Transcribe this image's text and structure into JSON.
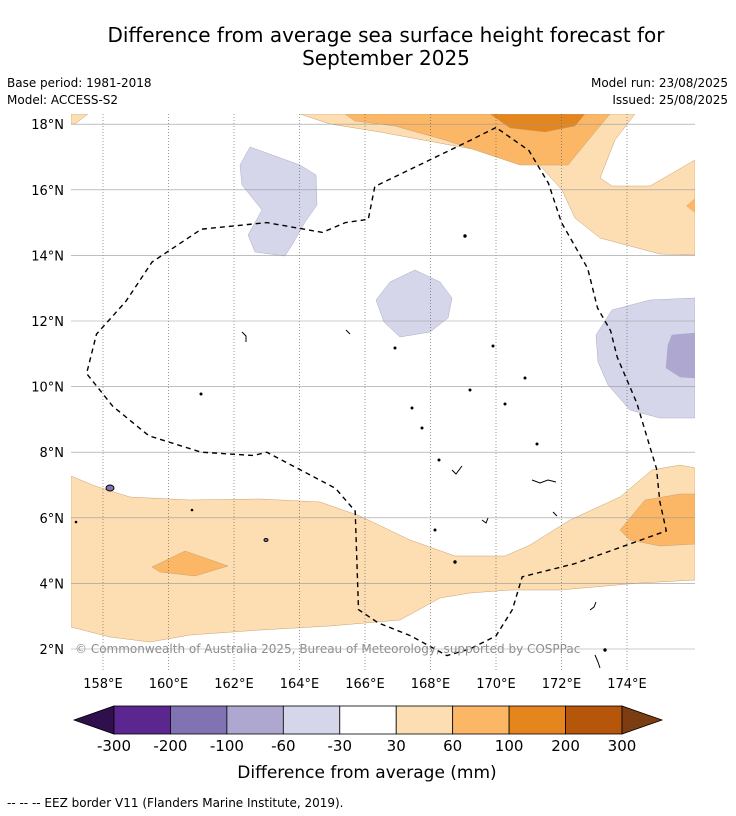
{
  "title_line1": "Difference from average sea surface height forecast for",
  "title_line2": "September 2025",
  "base_period": "Base period: 1981-2018",
  "model": "Model: ACCESS-S2",
  "model_run": "Model run: 23/08/2025",
  "issued": "Issued: 25/08/2025",
  "copyright": "© Commonwealth of Australia 2025, Bureau of Meteorology, supported by COSPPac",
  "footer": "-- -- -- EEZ border V11 (Flanders Marine Institute, 2019).",
  "colorbar": {
    "label": "Difference from average (mm)",
    "ticks": [
      "-300",
      "-200",
      "-100",
      "-60",
      "-30",
      "30",
      "60",
      "100",
      "200",
      "300"
    ],
    "colors": [
      "#5b2690",
      "#8173b1",
      "#aea8d1",
      "#d6d6ea",
      "#ffffff",
      "#fddeb3",
      "#fbb766",
      "#e4861d",
      "#b5560a"
    ],
    "under_color": "#2f0f4c",
    "over_color": "#7b3d11"
  },
  "chart_data": {
    "type": "map",
    "lon_ticks": [
      "158°E",
      "160°E",
      "162°E",
      "164°E",
      "166°E",
      "168°E",
      "170°E",
      "172°E",
      "174°E"
    ],
    "lon_values": [
      158,
      160,
      162,
      164,
      166,
      168,
      170,
      172,
      174
    ],
    "lat_ticks": [
      "2°N",
      "4°N",
      "6°N",
      "8°N",
      "10°N",
      "12°N",
      "14°N",
      "16°N",
      "18°N"
    ],
    "lat_values": [
      2,
      4,
      6,
      8,
      10,
      12,
      14,
      16,
      18
    ],
    "lon_range": [
      157,
      176
    ],
    "lat_range": [
      1.5,
      18.3
    ],
    "grid": true,
    "eez_border": [
      [
        170,
        17.9
      ],
      [
        169.2,
        17.5
      ],
      [
        166.3,
        16.1
      ],
      [
        166.1,
        15.1
      ],
      [
        165.4,
        15.0
      ],
      [
        164.7,
        14.7
      ],
      [
        163.0,
        15.0
      ],
      [
        161.0,
        14.8
      ],
      [
        159.5,
        13.8
      ],
      [
        158.7,
        12.6
      ],
      [
        157.8,
        11.6
      ],
      [
        157.5,
        10.4
      ],
      [
        158.3,
        9.4
      ],
      [
        159.4,
        8.5
      ],
      [
        161.0,
        8.0
      ],
      [
        162.6,
        7.9
      ],
      [
        163.0,
        8.0
      ],
      [
        165.1,
        6.9
      ],
      [
        165.7,
        6.2
      ],
      [
        165.8,
        3.2
      ],
      [
        166.4,
        2.8
      ],
      [
        167.4,
        2.4
      ],
      [
        168.5,
        1.8
      ],
      [
        169.2,
        2.0
      ],
      [
        170.0,
        2.4
      ],
      [
        170.5,
        3.2
      ],
      [
        170.8,
        4.2
      ],
      [
        172.4,
        4.6
      ],
      [
        175.2,
        5.6
      ],
      [
        175.0,
        6.5
      ],
      [
        174.9,
        7.5
      ],
      [
        174.6,
        8.5
      ],
      [
        174.3,
        9.5
      ],
      [
        173.7,
        10.9
      ],
      [
        173.5,
        11.7
      ],
      [
        173.1,
        12.4
      ],
      [
        172.8,
        13.6
      ],
      [
        172.0,
        15.0
      ],
      [
        171.6,
        16.2
      ],
      [
        171.0,
        17.2
      ],
      [
        170,
        17.9
      ]
    ]
  }
}
